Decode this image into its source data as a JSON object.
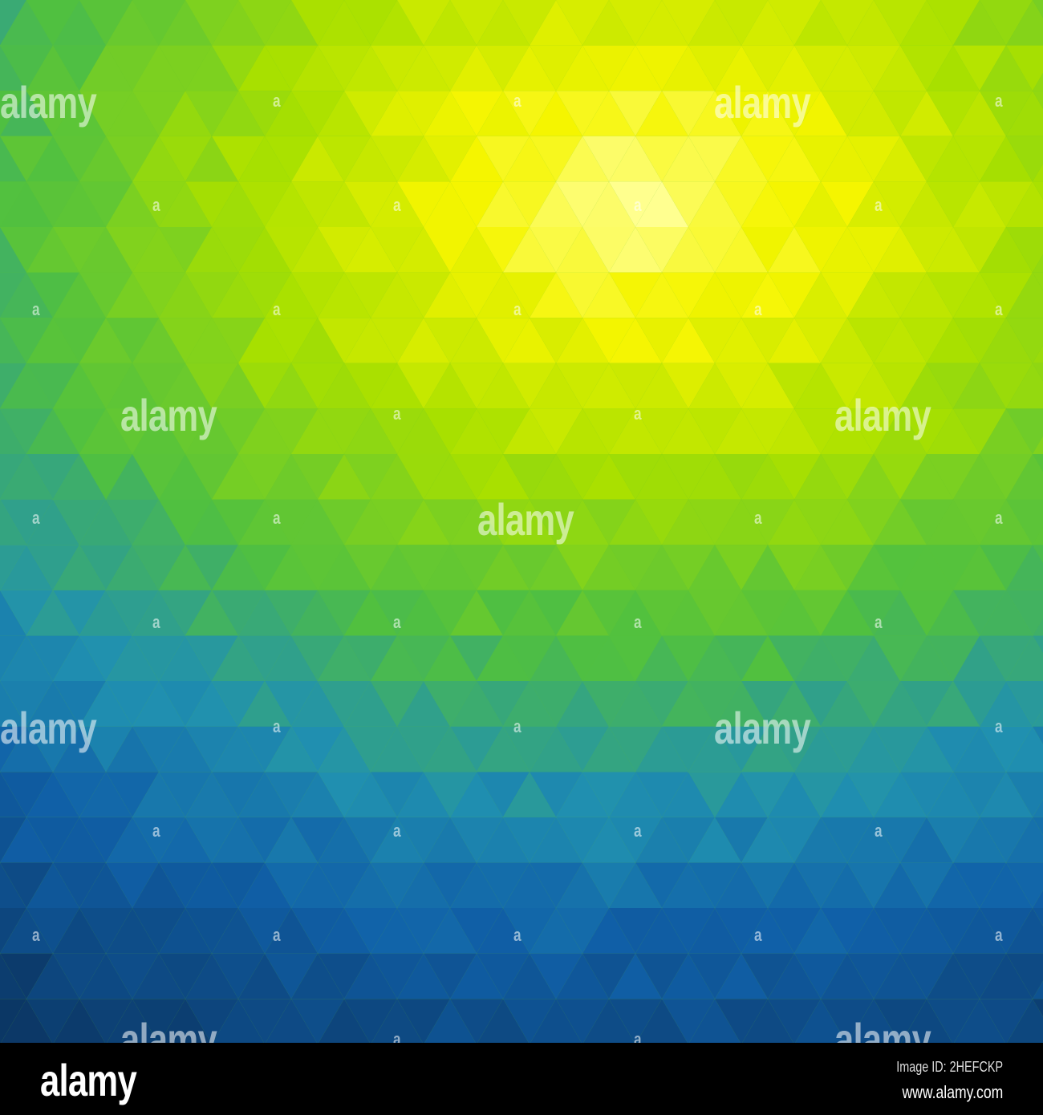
{
  "image": {
    "description_colors": {
      "highlight": "#ffff90",
      "yellow": "#f5f500",
      "lime": "#a8e000",
      "green": "#50c040",
      "teal": "#2090b0",
      "blue": "#1060a8",
      "navy": "#0a2a50"
    }
  },
  "watermark": {
    "big_text": "alamy",
    "small_text": "a"
  },
  "footer": {
    "logo": "alamy",
    "image_id": "Image ID: 2HEFCKP",
    "website": "www.alamy.com"
  }
}
